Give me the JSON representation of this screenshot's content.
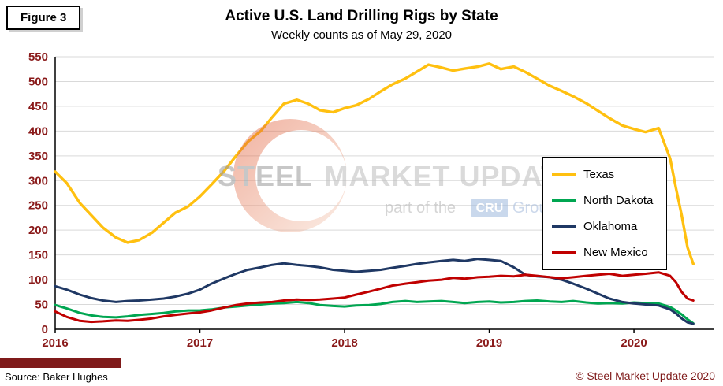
{
  "figure_label": "Figure 3",
  "source": "Source: Baker Hughes",
  "copyright": "© Steel Market Update 2020",
  "watermark": {
    "brand_part1": "STEEL",
    "brand_part2": "MARKET UPDATE",
    "tagline_prefix": "part of the",
    "tagline_box": "CRU",
    "tagline_suffix": "Group"
  },
  "colors": {
    "axis_label": "#8a1a1a",
    "grid": "#d9d9d9",
    "axis_line": "#000000",
    "footer_bar": "#7f1a1a",
    "copyright_text": "#7f1a1a"
  },
  "chart_data": {
    "type": "line",
    "title": "Active U.S. Land Drilling Rigs by State",
    "subtitle": "Weekly counts as of May 29, 2020",
    "xlabel": "",
    "ylabel": "",
    "xlim": [
      2016,
      2020.55
    ],
    "ylim": [
      0,
      550
    ],
    "x_ticks": [
      2016,
      2017,
      2018,
      2019,
      2020
    ],
    "y_ticks": [
      0,
      50,
      100,
      150,
      200,
      250,
      300,
      350,
      400,
      450,
      500,
      550
    ],
    "grid": "horizontal",
    "legend_position": "right",
    "x": [
      2016,
      2016.08,
      2016.17,
      2016.25,
      2016.33,
      2016.42,
      2016.5,
      2016.58,
      2016.67,
      2016.75,
      2016.83,
      2016.92,
      2017,
      2017.08,
      2017.17,
      2017.25,
      2017.33,
      2017.42,
      2017.5,
      2017.58,
      2017.67,
      2017.75,
      2017.83,
      2017.92,
      2018,
      2018.08,
      2018.17,
      2018.25,
      2018.33,
      2018.42,
      2018.5,
      2018.58,
      2018.67,
      2018.75,
      2018.83,
      2018.92,
      2019,
      2019.08,
      2019.17,
      2019.25,
      2019.33,
      2019.42,
      2019.5,
      2019.58,
      2019.67,
      2019.75,
      2019.83,
      2019.92,
      2020,
      2020.08,
      2020.17,
      2020.25,
      2020.29,
      2020.33,
      2020.37,
      2020.41
    ],
    "series": [
      {
        "name": "Texas",
        "color": "#FFC010",
        "values": [
          318,
          295,
          255,
          230,
          205,
          185,
          175,
          180,
          195,
          215,
          235,
          248,
          268,
          292,
          320,
          350,
          378,
          400,
          428,
          455,
          463,
          455,
          442,
          438,
          446,
          452,
          465,
          480,
          494,
          506,
          520,
          534,
          528,
          522,
          526,
          530,
          536,
          525,
          530,
          519,
          506,
          491,
          481,
          470,
          456,
          441,
          426,
          411,
          404,
          398,
          406,
          345,
          285,
          230,
          165,
          132
        ]
      },
      {
        "name": "North Dakota",
        "color": "#00A651",
        "values": [
          49,
          42,
          33,
          28,
          25,
          24,
          26,
          29,
          31,
          33,
          36,
          38,
          38,
          40,
          44,
          46,
          48,
          50,
          52,
          53,
          55,
          53,
          49,
          47,
          46,
          48,
          49,
          51,
          55,
          57,
          55,
          56,
          57,
          55,
          53,
          55,
          56,
          54,
          55,
          57,
          58,
          56,
          55,
          57,
          54,
          52,
          53,
          52,
          54,
          53,
          52,
          45,
          38,
          30,
          20,
          12
        ]
      },
      {
        "name": "Oklahoma",
        "color": "#1F3864",
        "values": [
          87,
          80,
          70,
          63,
          58,
          55,
          57,
          58,
          60,
          62,
          66,
          72,
          80,
          92,
          103,
          112,
          120,
          125,
          130,
          133,
          130,
          128,
          125,
          120,
          118,
          116,
          118,
          120,
          124,
          128,
          132,
          135,
          138,
          140,
          138,
          142,
          140,
          138,
          125,
          110,
          107,
          105,
          100,
          92,
          82,
          72,
          62,
          55,
          52,
          50,
          48,
          40,
          32,
          22,
          14,
          11
        ]
      },
      {
        "name": "New Mexico",
        "color": "#C00000",
        "values": [
          36,
          25,
          17,
          15,
          16,
          18,
          17,
          19,
          22,
          26,
          29,
          32,
          34,
          38,
          44,
          49,
          52,
          54,
          55,
          58,
          60,
          59,
          60,
          62,
          64,
          70,
          76,
          82,
          88,
          92,
          95,
          98,
          100,
          104,
          102,
          105,
          106,
          108,
          107,
          110,
          108,
          105,
          103,
          105,
          108,
          110,
          112,
          108,
          110,
          112,
          115,
          108,
          95,
          75,
          62,
          58
        ]
      }
    ]
  }
}
